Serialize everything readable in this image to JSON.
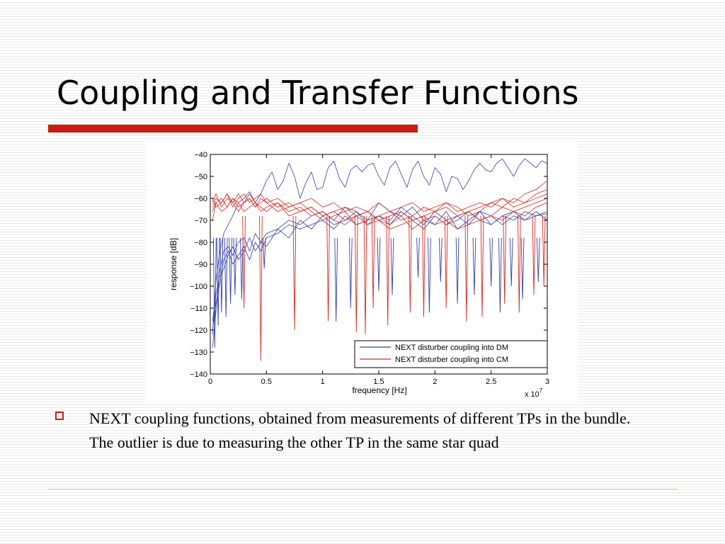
{
  "slide": {
    "title": "Coupling and Transfer Functions",
    "bullet": "NEXT coupling functions, obtained from measurements of different TPs in the bundle. The outlier is due to measuring the other TP in the same star quad"
  },
  "colors": {
    "accent_red": "#cc1a14",
    "series_dm": "#3340a6",
    "series_cm": "#d42a22",
    "background_stripe": "#e9e9e9"
  },
  "icons": {
    "bullet": "hollow-square-icon"
  },
  "chart_data": {
    "type": "line",
    "xlabel": "frequency [Hz]",
    "ylabel": "response [dB]",
    "x_multiplier_label": "x 10",
    "x_multiplier_exponent": "7",
    "xlim": [
      0,
      3
    ],
    "ylim": [
      -140,
      -40
    ],
    "xticks": [
      0,
      0.5,
      1,
      1.5,
      2,
      2.5,
      3
    ],
    "xtick_labels": [
      "0",
      "0.5",
      "1",
      "1.5",
      "2",
      "2.5",
      "3"
    ],
    "yticks": [
      -40,
      -50,
      -60,
      -70,
      -80,
      -90,
      -100,
      -110,
      -120,
      -130,
      -140
    ],
    "ytick_labels": [
      "−40",
      "−50",
      "−60",
      "−70",
      "−80",
      "−90",
      "−100",
      "−110",
      "−120",
      "−130",
      "−140"
    ],
    "grid": false,
    "legend_position": "bottom-right",
    "legend": [
      {
        "label": "NEXT disturber coupling into DM",
        "color": "#3340a6"
      },
      {
        "label": "NEXT disturber coupling into CM",
        "color": "#d42a22"
      }
    ],
    "series": [
      {
        "group": "DM",
        "color": "#3340a6",
        "x": [
          0.02,
          0.05,
          0.08,
          0.12,
          0.16,
          0.2,
          0.25,
          0.3,
          0.35,
          0.4,
          0.45,
          0.5,
          0.55,
          0.6,
          0.65,
          0.7,
          0.75,
          0.8,
          0.85,
          0.9,
          0.95,
          1.0,
          1.05,
          1.1,
          1.15,
          1.2,
          1.25,
          1.3,
          1.35,
          1.4,
          1.45,
          1.5,
          1.55,
          1.6,
          1.65,
          1.7,
          1.75,
          1.8,
          1.85,
          1.9,
          1.95,
          2.0,
          2.05,
          2.1,
          2.15,
          2.2,
          2.25,
          2.3,
          2.35,
          2.4,
          2.45,
          2.5,
          2.55,
          2.6,
          2.65,
          2.7,
          2.75,
          2.8,
          2.85,
          2.9,
          2.95,
          3.0
        ],
        "y": [
          -122,
          -98,
          -86,
          -76,
          -72,
          -68,
          -62,
          -60,
          -57,
          -62,
          -58,
          -52,
          -48,
          -56,
          -52,
          -44,
          -50,
          -60,
          -53,
          -48,
          -56,
          -55,
          -46,
          -43,
          -51,
          -55,
          -47,
          -45,
          -48,
          -45,
          -44,
          -50,
          -54,
          -46,
          -43,
          -49,
          -55,
          -47,
          -43,
          -50,
          -54,
          -46,
          -49,
          -57,
          -50,
          -51,
          -56,
          -52,
          -47,
          -44,
          -47,
          -48,
          -44,
          -42,
          -46,
          -50,
          -45,
          -42,
          -44,
          -46,
          -43,
          -44
        ]
      },
      {
        "group": "DM",
        "color": "#3340a6",
        "x": [
          0.02,
          0.05,
          0.08,
          0.12,
          0.16,
          0.2,
          0.25,
          0.3,
          0.35,
          0.4,
          0.45,
          0.5,
          0.6,
          0.7,
          0.8,
          0.9,
          1.0,
          1.1,
          1.2,
          1.3,
          1.4,
          1.5,
          1.6,
          1.7,
          1.8,
          1.9,
          2.0,
          2.1,
          2.2,
          2.3,
          2.4,
          2.5,
          2.6,
          2.7,
          2.8,
          2.9,
          3.0
        ],
        "y": [
          -128,
          -112,
          -94,
          -84,
          -82,
          -86,
          -80,
          -78,
          -84,
          -76,
          -80,
          -82,
          -74,
          -70,
          -72,
          -68,
          -66,
          -70,
          -64,
          -66,
          -70,
          -62,
          -66,
          -68,
          -64,
          -70,
          -72,
          -66,
          -74,
          -70,
          -66,
          -72,
          -68,
          -70,
          -66,
          -68,
          -67
        ]
      },
      {
        "group": "DM",
        "color": "#3340a6",
        "x": [
          0.02,
          0.05,
          0.08,
          0.12,
          0.16,
          0.2,
          0.25,
          0.3,
          0.35,
          0.4,
          0.45,
          0.5,
          0.6,
          0.7,
          0.8,
          0.9,
          1.0,
          1.1,
          1.2,
          1.3,
          1.4,
          1.5,
          1.6,
          1.7,
          1.8,
          1.9,
          2.0,
          2.1,
          2.2,
          2.3,
          2.4,
          2.5,
          2.6,
          2.7,
          2.8,
          2.9,
          3.0
        ],
        "y": [
          -120,
          -108,
          -100,
          -88,
          -84,
          -90,
          -86,
          -82,
          -88,
          -80,
          -84,
          -78,
          -76,
          -72,
          -74,
          -72,
          -70,
          -74,
          -68,
          -72,
          -70,
          -68,
          -72,
          -66,
          -70,
          -74,
          -68,
          -72,
          -70,
          -66,
          -70,
          -72,
          -68,
          -66,
          -70,
          -68,
          -66
        ]
      },
      {
        "group": "DM",
        "color": "#3340a6",
        "x": [
          0.02,
          0.05,
          0.08,
          0.12,
          0.16,
          0.2,
          0.25,
          0.3,
          0.35,
          0.4,
          0.45,
          0.5,
          0.6,
          0.7,
          0.8,
          0.9,
          1.0,
          1.1,
          1.2,
          1.3,
          1.4,
          1.5,
          1.6,
          1.7,
          1.8,
          1.9,
          2.0,
          2.1,
          2.2,
          2.3,
          2.4,
          2.5,
          2.6,
          2.7,
          2.8,
          2.9,
          3.0
        ],
        "y": [
          -116,
          -104,
          -96,
          -92,
          -86,
          -82,
          -88,
          -84,
          -78,
          -84,
          -80,
          -76,
          -74,
          -78,
          -70,
          -74,
          -68,
          -72,
          -70,
          -66,
          -72,
          -68,
          -70,
          -64,
          -68,
          -72,
          -66,
          -70,
          -68,
          -72,
          -66,
          -68,
          -72,
          -68,
          -70,
          -66,
          -70
        ]
      },
      {
        "group": "CM",
        "color": "#d42a22",
        "x": [
          0.02,
          0.05,
          0.1,
          0.15,
          0.2,
          0.25,
          0.3,
          0.35,
          0.4,
          0.45,
          0.5,
          0.6,
          0.7,
          0.8,
          0.9,
          1.0,
          1.1,
          1.2,
          1.3,
          1.4,
          1.5,
          1.6,
          1.7,
          1.8,
          1.9,
          2.0,
          2.1,
          2.2,
          2.3,
          2.4,
          2.5,
          2.6,
          2.7,
          2.8,
          2.9,
          3.0
        ],
        "y": [
          -64,
          -60,
          -62,
          -58,
          -64,
          -60,
          -58,
          -62,
          -60,
          -58,
          -62,
          -60,
          -64,
          -62,
          -60,
          -64,
          -62,
          -66,
          -64,
          -66,
          -62,
          -66,
          -64,
          -62,
          -66,
          -64,
          -62,
          -66,
          -64,
          -62,
          -64,
          -60,
          -62,
          -58,
          -56,
          -52
        ]
      },
      {
        "group": "CM",
        "color": "#d42a22",
        "x": [
          0.02,
          0.05,
          0.1,
          0.15,
          0.2,
          0.25,
          0.3,
          0.35,
          0.4,
          0.45,
          0.5,
          0.6,
          0.7,
          0.8,
          0.9,
          1.0,
          1.1,
          1.2,
          1.3,
          1.4,
          1.5,
          1.6,
          1.7,
          1.8,
          1.9,
          2.0,
          2.1,
          2.2,
          2.3,
          2.4,
          2.5,
          2.6,
          2.7,
          2.8,
          2.9,
          3.0
        ],
        "y": [
          -62,
          -58,
          -64,
          -60,
          -62,
          -66,
          -62,
          -60,
          -64,
          -62,
          -60,
          -64,
          -62,
          -66,
          -64,
          -68,
          -66,
          -70,
          -68,
          -66,
          -70,
          -68,
          -66,
          -70,
          -68,
          -66,
          -64,
          -68,
          -66,
          -64,
          -62,
          -64,
          -60,
          -62,
          -58,
          -56
        ]
      },
      {
        "group": "CM",
        "color": "#d42a22",
        "x": [
          0.02,
          0.05,
          0.1,
          0.15,
          0.2,
          0.25,
          0.3,
          0.35,
          0.4,
          0.45,
          0.5,
          0.6,
          0.7,
          0.8,
          0.9,
          1.0,
          1.1,
          1.2,
          1.3,
          1.4,
          1.5,
          1.6,
          1.7,
          1.8,
          1.9,
          2.0,
          2.1,
          2.2,
          2.3,
          2.4,
          2.5,
          2.6,
          2.7,
          2.8,
          2.9,
          3.0
        ],
        "y": [
          -66,
          -62,
          -60,
          -64,
          -60,
          -62,
          -66,
          -64,
          -62,
          -66,
          -64,
          -62,
          -66,
          -64,
          -68,
          -66,
          -70,
          -72,
          -68,
          -72,
          -70,
          -74,
          -72,
          -70,
          -68,
          -72,
          -70,
          -74,
          -72,
          -70,
          -68,
          -70,
          -66,
          -68,
          -64,
          -62
        ]
      },
      {
        "group": "CM",
        "color": "#d42a22",
        "x": [
          0.02,
          0.05,
          0.1,
          0.15,
          0.2,
          0.25,
          0.3,
          0.35,
          0.4,
          0.45,
          0.5,
          0.6,
          0.7,
          0.8,
          0.9,
          1.0,
          1.1,
          1.2,
          1.3,
          1.4,
          1.5,
          1.6,
          1.7,
          1.8,
          1.9,
          2.0,
          2.1,
          2.2,
          2.3,
          2.4,
          2.5,
          2.6,
          2.7,
          2.8,
          2.9,
          3.0
        ],
        "y": [
          -60,
          -64,
          -62,
          -58,
          -62,
          -58,
          -62,
          -60,
          -64,
          -60,
          -62,
          -66,
          -64,
          -62,
          -66,
          -70,
          -68,
          -66,
          -72,
          -70,
          -68,
          -66,
          -70,
          -68,
          -64,
          -66,
          -62,
          -64,
          -68,
          -66,
          -62,
          -60,
          -64,
          -62,
          -60,
          -58
        ]
      },
      {
        "group": "CM",
        "color": "#d42a22",
        "x": [
          0.02,
          0.05,
          0.1,
          0.15,
          0.2,
          0.25,
          0.3,
          0.35,
          0.4,
          0.45,
          0.5,
          0.6,
          0.7,
          0.8,
          0.9,
          1.0,
          1.1,
          1.2,
          1.3,
          1.4,
          1.5,
          1.6,
          1.7,
          1.8,
          1.9,
          2.0,
          2.1,
          2.2,
          2.3,
          2.4,
          2.5,
          2.6,
          2.7,
          2.8,
          2.9,
          3.0
        ],
        "y": [
          -70,
          -62,
          -66,
          -64,
          -60,
          -64,
          -62,
          -58,
          -62,
          -64,
          -66,
          -62,
          -68,
          -66,
          -64,
          -68,
          -66,
          -64,
          -68,
          -66,
          -70,
          -72,
          -68,
          -74,
          -70,
          -68,
          -72,
          -68,
          -66,
          -70,
          -68,
          -64,
          -66,
          -64,
          -62,
          -60
        ]
      }
    ],
    "dips": [
      {
        "group": "DM",
        "color": "#3340a6",
        "points": [
          [
            0.04,
            -128
          ],
          [
            0.07,
            -118
          ],
          [
            0.1,
            -112
          ],
          [
            0.14,
            -114
          ],
          [
            0.18,
            -108
          ],
          [
            0.22,
            -104
          ],
          [
            0.28,
            -106
          ],
          [
            0.48,
            -92
          ],
          [
            1.12,
            -116
          ],
          [
            1.25,
            -110
          ],
          [
            1.5,
            -102
          ],
          [
            1.62,
            -104
          ],
          [
            1.85,
            -96
          ],
          [
            1.95,
            -112
          ],
          [
            2.05,
            -98
          ],
          [
            2.2,
            -108
          ],
          [
            2.35,
            -104
          ],
          [
            2.5,
            -100
          ],
          [
            2.58,
            -112
          ],
          [
            2.68,
            -100
          ],
          [
            2.78,
            -106
          ],
          [
            2.92,
            -98
          ]
        ]
      },
      {
        "group": "CM",
        "color": "#d42a22",
        "points": [
          [
            0.3,
            -110
          ],
          [
            0.45,
            -134
          ],
          [
            0.75,
            -120
          ],
          [
            1.05,
            -116
          ],
          [
            1.3,
            -121
          ],
          [
            1.38,
            -122
          ],
          [
            1.45,
            -110
          ],
          [
            1.58,
            -118
          ],
          [
            1.78,
            -112
          ],
          [
            1.9,
            -114
          ],
          [
            2.1,
            -110
          ],
          [
            2.28,
            -116
          ],
          [
            2.42,
            -114
          ],
          [
            2.62,
            -108
          ],
          [
            2.75,
            -112
          ],
          [
            2.88,
            -104
          ],
          [
            2.97,
            -100
          ]
        ]
      }
    ]
  }
}
